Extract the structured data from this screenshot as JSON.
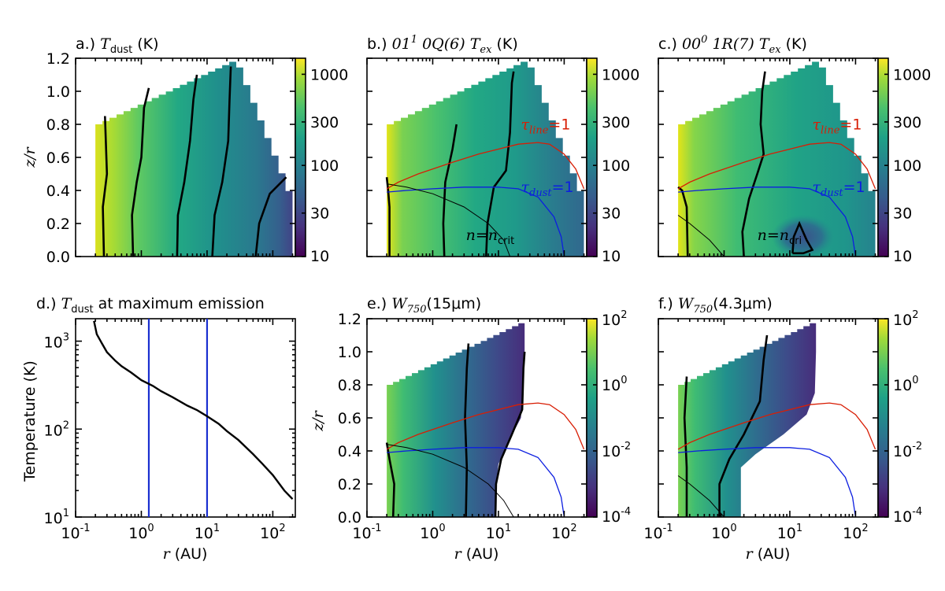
{
  "figure": {
    "labels": {
      "a": {
        "prefix": "a.) ",
        "sym": "T",
        "sub": "dust",
        "suffix": " (K)"
      },
      "b": {
        "prefix": "b.) ",
        "sym": "01",
        "sup": "1",
        "mid": " 0Q(6) ",
        "sym2": "T",
        "sub": "ex",
        "suffix": "  (K)"
      },
      "c": {
        "prefix": "c.) ",
        "sym": "00",
        "sup": "0",
        "mid": " 1R(7) ",
        "sym2": "T",
        "sub": "ex",
        "suffix": "  (K)"
      },
      "d": {
        "prefix": "d.) ",
        "sym": "T",
        "sub": "dust",
        "suffix": " at maximum emission"
      },
      "e": {
        "prefix": "e.) ",
        "sym": "W",
        "sub": "750",
        "suffix": "(15μm)"
      },
      "f": {
        "prefix": "f.) ",
        "sym": "W",
        "sub": "750",
        "suffix": "(4.3μm)"
      }
    },
    "annotations": {
      "tau_line": "τ",
      "tau_line_sub": "line",
      "tau_dust_sub": "dust",
      "eq_one": "=1",
      "n_crit": "n=n",
      "n_crit_sub": "crit",
      "n_crit_sub_cut": "cri"
    },
    "axis_labels": {
      "zr": "z/r",
      "r": "r (AU)",
      "temperature": "Temperature (K)"
    }
  },
  "chart_data": [
    {
      "id": "a",
      "type": "heatmap",
      "title": "a.) T_dust (K)",
      "xlabel": "",
      "ylabel": "z/r",
      "xscale": "log",
      "xlim": [
        0.1,
        220
      ],
      "ylim": [
        0.0,
        1.2
      ],
      "yticks": [
        "0.0",
        "0.2",
        "0.4",
        "0.6",
        "0.8",
        "1.0",
        "1.2"
      ],
      "colorbar": {
        "scale": "log",
        "range": [
          10,
          1500
        ],
        "ticks": [
          "10",
          "30",
          "100",
          "300",
          "1000"
        ]
      }
    },
    {
      "id": "b",
      "type": "heatmap",
      "title": "b.) 01^1 0Q(6) T_ex (K)",
      "xscale": "log",
      "xlim": [
        0.1,
        220
      ],
      "ylim": [
        0.0,
        1.2
      ],
      "colorbar": {
        "scale": "log",
        "range": [
          10,
          1500
        ],
        "ticks": [
          "10",
          "30",
          "100",
          "300",
          "1000"
        ]
      },
      "annotations": [
        "τ_line=1",
        "τ_dust=1",
        "n=n_crit"
      ]
    },
    {
      "id": "c",
      "type": "heatmap",
      "title": "c.) 00^0 1R(7) T_ex (K)",
      "xscale": "log",
      "xlim": [
        0.1,
        220
      ],
      "ylim": [
        0.0,
        1.2
      ],
      "colorbar": {
        "scale": "log",
        "range": [
          10,
          1500
        ],
        "ticks": [
          "10",
          "30",
          "100",
          "300",
          "1000"
        ]
      },
      "annotations": [
        "τ_line=1",
        "τ_dust=1",
        "n=n_crit"
      ]
    },
    {
      "id": "d",
      "type": "line",
      "title": "d.) T_dust at maximum emission",
      "xlabel": "r (AU)",
      "ylabel": "Temperature (K)",
      "xscale": "log",
      "yscale": "log",
      "xlim": [
        0.1,
        220
      ],
      "ylim": [
        10,
        1800
      ],
      "xticks": [
        "10",
        "10",
        "10",
        "10"
      ],
      "xtick_exponents": [
        "-1",
        "0",
        "1",
        "2"
      ],
      "yticks": [
        "10",
        "10",
        "10"
      ],
      "ytick_exponents": [
        "1",
        "2",
        "3"
      ],
      "x": [
        0.19,
        0.21,
        0.25,
        0.3,
        0.4,
        0.5,
        0.7,
        1.0,
        1.5,
        2.0,
        3.0,
        5.0,
        7.0,
        10,
        15,
        20,
        30,
        50,
        70,
        100,
        150,
        200
      ],
      "y": [
        1700,
        1200,
        950,
        750,
        600,
        520,
        440,
        360,
        310,
        270,
        230,
        185,
        165,
        140,
        115,
        95,
        75,
        52,
        40,
        30,
        20,
        16
      ],
      "vlines": [
        1.3,
        10
      ]
    },
    {
      "id": "e",
      "type": "heatmap",
      "title": "e.) W_750(15μm)",
      "xlabel": "r (AU)",
      "ylabel": "z/r",
      "xscale": "log",
      "xlim": [
        0.1,
        220
      ],
      "ylim": [
        0.0,
        1.2
      ],
      "yticks": [
        "0.0",
        "0.2",
        "0.4",
        "0.6",
        "0.8",
        "1.0",
        "1.2"
      ],
      "colorbar": {
        "scale": "log",
        "range": [
          0.0001,
          100
        ],
        "ticks": [
          "10",
          "10",
          "10",
          "10"
        ],
        "tick_exponents": [
          "-4",
          "-2",
          "0",
          "2"
        ]
      }
    },
    {
      "id": "f",
      "type": "heatmap",
      "title": "f.) W_750(4.3μm)",
      "xlabel": "r (AU)",
      "xscale": "log",
      "xlim": [
        0.1,
        220
      ],
      "ylim": [
        0.0,
        1.2
      ],
      "colorbar": {
        "scale": "log",
        "range": [
          0.0001,
          100
        ],
        "ticks": [
          "10",
          "10",
          "10",
          "10"
        ],
        "tick_exponents": [
          "-4",
          "-2",
          "0",
          "2"
        ]
      }
    }
  ]
}
